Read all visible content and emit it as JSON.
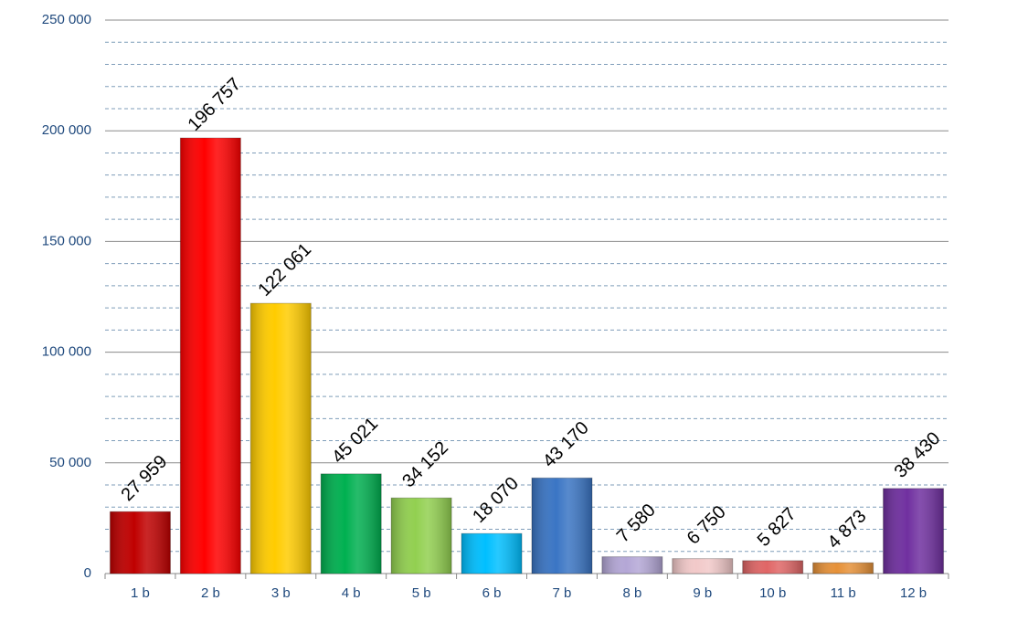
{
  "chart_data": {
    "type": "bar",
    "categories": [
      "1 b",
      "2 b",
      "3 b",
      "4 b",
      "5 b",
      "6 b",
      "7 b",
      "8 b",
      "9 b",
      "10 b",
      "11 b",
      "12 b"
    ],
    "values": [
      27959,
      196757,
      122061,
      45021,
      34152,
      18070,
      43170,
      7580,
      6750,
      5827,
      4873,
      38430
    ],
    "value_labels": [
      "27 959",
      "196 757",
      "122 061",
      "45 021",
      "34 152",
      "18 070",
      "43 170",
      "7 580",
      "6 750",
      "5 827",
      "4 873",
      "38 430"
    ],
    "colors": [
      "#c00000",
      "#ff0000",
      "#ffcc00",
      "#00b050",
      "#92d050",
      "#00bfff",
      "#3a75c4",
      "#b4a7d6",
      "#f2c9c9",
      "#e06666",
      "#e69138",
      "#7030a0"
    ],
    "ylim": [
      0,
      250000
    ],
    "yticks": [
      {
        "value": 0,
        "label": "0"
      },
      {
        "value": 50000,
        "label": "50 000"
      },
      {
        "value": 100000,
        "label": "100 000"
      },
      {
        "value": 150000,
        "label": "150 000"
      },
      {
        "value": 200000,
        "label": "200 000"
      },
      {
        "value": 250000,
        "label": "250 000"
      }
    ],
    "minor_yticks": [
      10000,
      20000,
      30000,
      40000,
      60000,
      70000,
      80000,
      90000,
      110000,
      120000,
      130000,
      140000,
      160000,
      170000,
      180000,
      190000,
      210000,
      220000,
      230000,
      240000
    ],
    "grid": true
  }
}
